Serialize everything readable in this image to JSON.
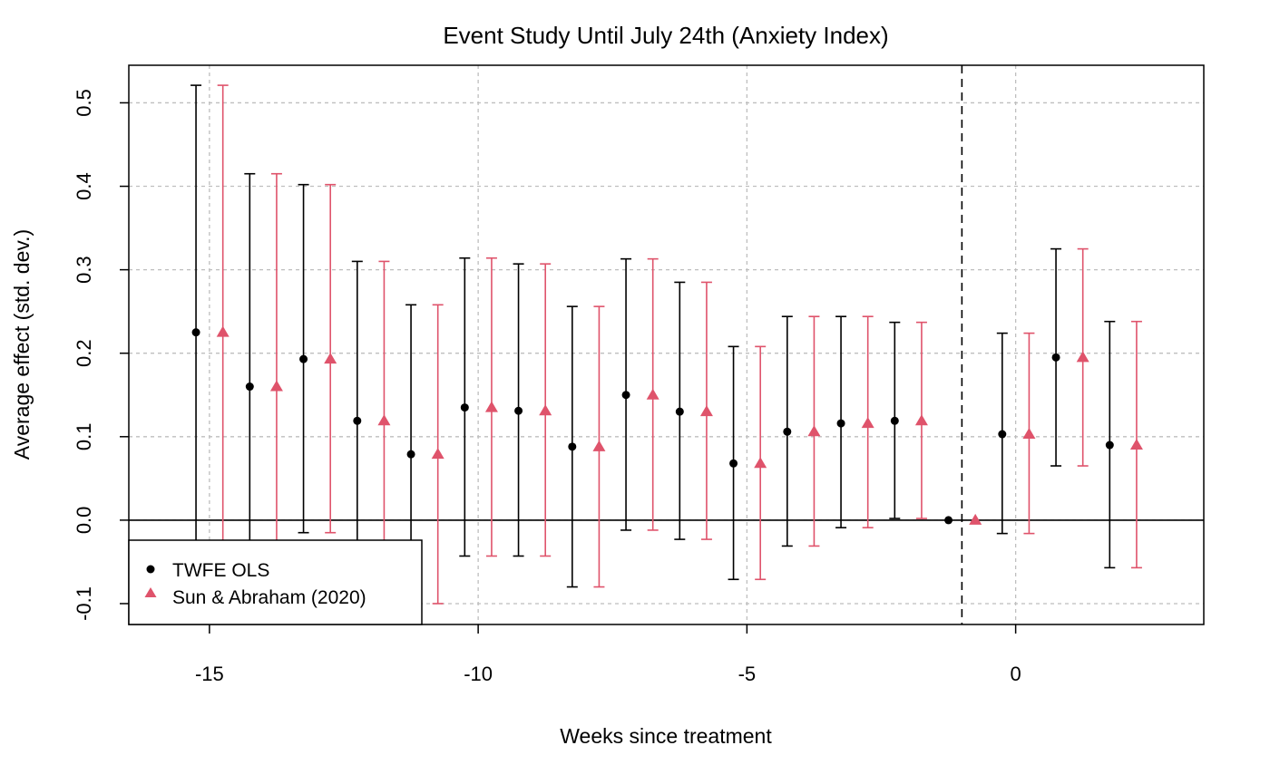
{
  "chart_data": {
    "type": "scatter",
    "title": "Event Study Until July 24th (Anxiety Index)",
    "xlabel": "Weeks since treatment",
    "ylabel": "Average effect (std. dev.)",
    "xlim": [
      -16.5,
      3.5
    ],
    "ylim": [
      -0.125,
      0.545
    ],
    "x_ticks": [
      "-15",
      "-10",
      "-5",
      "0"
    ],
    "y_ticks": [
      "-0.1",
      "0.0",
      "0.1",
      "0.2",
      "0.3",
      "0.4",
      "0.5"
    ],
    "grid": true,
    "reference_lines": {
      "horizontal_y": 0,
      "vertical_dashed_x": -1
    },
    "legend": {
      "position": "bottom-left",
      "entries": [
        "TWFE OLS",
        "Sun & Abraham (2020)"
      ]
    },
    "colors": {
      "twfe": "#000000",
      "sun_abraham": "#DF536B",
      "grid": "#BEBEBE"
    },
    "x": [
      -15,
      -14,
      -13,
      -12,
      -11,
      -10,
      -9,
      -8,
      -7,
      -6,
      -5,
      -4,
      -3,
      -2,
      -1,
      0,
      1,
      2
    ],
    "series": [
      {
        "name": "TWFE OLS",
        "marker": "circle",
        "estimates": [
          0.225,
          0.16,
          0.193,
          0.119,
          0.079,
          0.135,
          0.131,
          0.088,
          0.15,
          0.13,
          0.068,
          0.106,
          0.116,
          0.119,
          0.0,
          0.103,
          0.195,
          0.09
        ],
        "ci_lower": [
          -0.13,
          -0.13,
          -0.015,
          -0.13,
          -0.13,
          -0.043,
          -0.043,
          -0.08,
          -0.012,
          -0.023,
          -0.071,
          -0.031,
          -0.009,
          0.002,
          null,
          -0.016,
          0.065,
          -0.057
        ],
        "ci_upper": [
          0.521,
          0.415,
          0.402,
          0.31,
          0.258,
          0.314,
          0.307,
          0.256,
          0.313,
          0.285,
          0.208,
          0.244,
          0.244,
          0.237,
          null,
          0.224,
          0.325,
          0.238
        ]
      },
      {
        "name": "Sun & Abraham (2020)",
        "marker": "triangle",
        "estimates": [
          0.225,
          0.16,
          0.193,
          0.119,
          0.079,
          0.135,
          0.131,
          0.088,
          0.15,
          0.13,
          0.068,
          0.106,
          0.116,
          0.119,
          0.0,
          0.103,
          0.195,
          0.09
        ],
        "ci_lower": [
          -0.13,
          -0.13,
          -0.015,
          -0.13,
          -0.1,
          -0.043,
          -0.043,
          -0.08,
          -0.012,
          -0.023,
          -0.071,
          -0.031,
          -0.009,
          0.002,
          null,
          -0.016,
          0.065,
          -0.057
        ],
        "ci_upper": [
          0.521,
          0.415,
          0.402,
          0.31,
          0.258,
          0.314,
          0.307,
          0.256,
          0.313,
          0.285,
          0.208,
          0.244,
          0.244,
          0.237,
          null,
          0.224,
          0.325,
          0.238
        ]
      }
    ]
  }
}
